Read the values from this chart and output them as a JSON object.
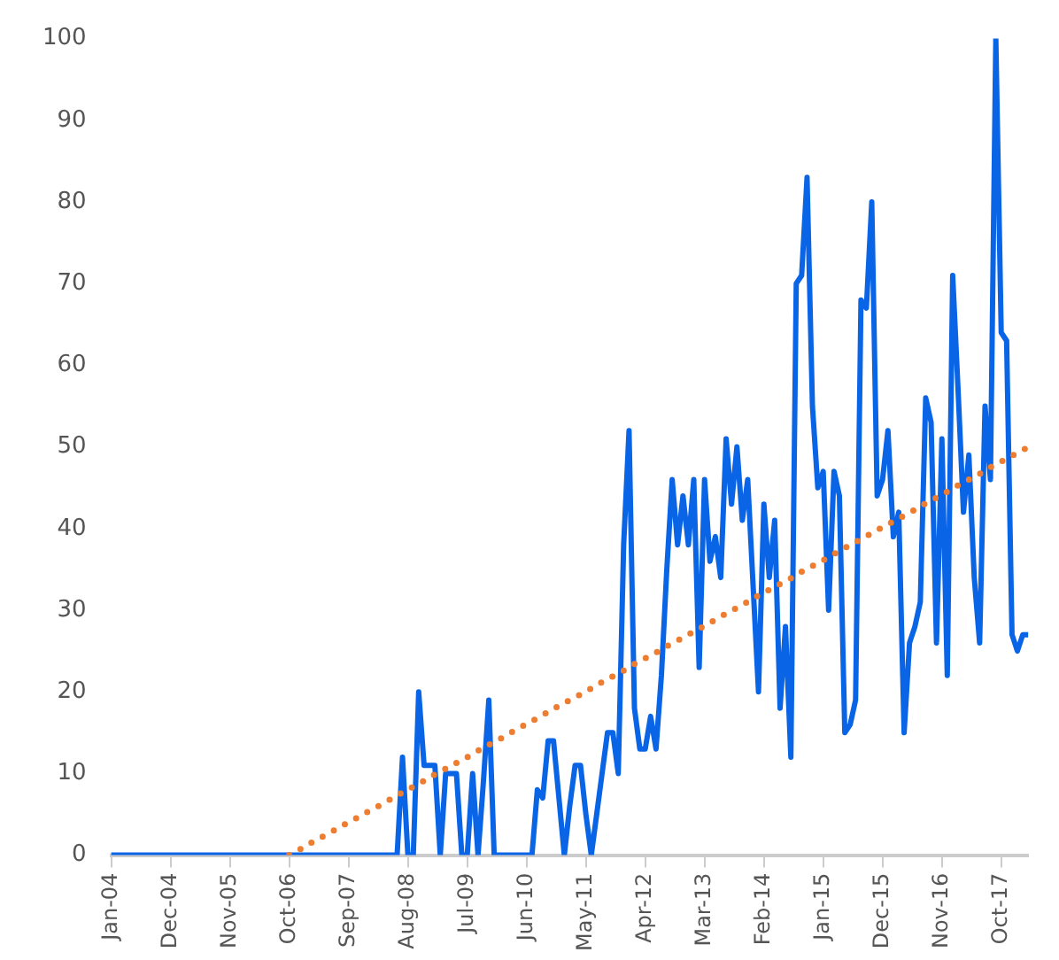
{
  "chart_data": {
    "type": "line",
    "marker": "none",
    "line_style": "solid",
    "legend": false,
    "categories": [
      "Jan-04",
      null,
      null,
      null,
      null,
      null,
      null,
      null,
      null,
      null,
      null,
      "Dec-04",
      null,
      null,
      null,
      null,
      null,
      null,
      null,
      null,
      null,
      null,
      "Nov-05",
      null,
      null,
      null,
      null,
      null,
      null,
      null,
      null,
      null,
      null,
      "Oct-06",
      null,
      null,
      null,
      null,
      null,
      null,
      null,
      null,
      null,
      null,
      "Sep-07",
      null,
      null,
      null,
      null,
      null,
      null,
      null,
      null,
      null,
      null,
      "Aug-08",
      null,
      null,
      null,
      null,
      null,
      null,
      null,
      null,
      null,
      null,
      "Jul-09",
      null,
      null,
      null,
      null,
      null,
      null,
      null,
      null,
      null,
      null,
      "Jun-10",
      null,
      null,
      null,
      null,
      null,
      null,
      null,
      null,
      null,
      null,
      "May-11",
      null,
      null,
      null,
      null,
      null,
      null,
      null,
      null,
      null,
      null,
      "Apr-12",
      null,
      null,
      null,
      null,
      null,
      null,
      null,
      null,
      null,
      null,
      "Mar-13",
      null,
      null,
      null,
      null,
      null,
      null,
      null,
      null,
      null,
      null,
      "Feb-14",
      null,
      null,
      null,
      null,
      null,
      null,
      null,
      null,
      null,
      null,
      "Jan-15",
      null,
      null,
      null,
      null,
      null,
      null,
      null,
      null,
      null,
      null,
      "Dec-15",
      null,
      null,
      null,
      null,
      null,
      null,
      null,
      null,
      null,
      null,
      "Nov-16",
      null,
      null,
      null,
      null,
      null,
      null,
      null,
      null,
      null,
      null,
      "Oct-17",
      null,
      null,
      null,
      null,
      null
    ],
    "ylim": [
      0,
      100
    ],
    "yticks": [
      0,
      10,
      20,
      30,
      40,
      50,
      60,
      70,
      80,
      90,
      100
    ],
    "series": [
      {
        "color": "#0a64e6",
        "values": [
          0,
          0,
          0,
          0,
          0,
          0,
          0,
          0,
          0,
          0,
          0,
          0,
          0,
          0,
          0,
          0,
          0,
          0,
          0,
          0,
          0,
          0,
          0,
          0,
          0,
          0,
          0,
          0,
          0,
          0,
          0,
          0,
          0,
          0,
          0,
          0,
          0,
          0,
          0,
          0,
          0,
          0,
          0,
          0,
          0,
          0,
          0,
          0,
          0,
          0,
          0,
          0,
          0,
          0,
          12,
          0,
          0,
          20,
          11,
          11,
          11,
          0,
          10,
          10,
          10,
          0,
          0,
          10,
          0,
          9,
          19,
          0,
          0,
          0,
          0,
          0,
          0,
          0,
          0,
          8,
          7,
          14,
          14,
          7,
          0,
          6,
          11,
          11,
          5,
          0,
          5,
          10,
          15,
          15,
          10,
          38,
          52,
          18,
          13,
          13,
          17,
          13,
          22,
          35,
          46,
          38,
          44,
          38,
          46,
          23,
          46,
          36,
          39,
          34,
          51,
          43,
          50,
          41,
          46,
          33,
          20,
          43,
          34,
          41,
          18,
          28,
          12,
          70,
          71,
          83,
          55,
          45,
          47,
          30,
          47,
          44,
          15,
          16,
          19,
          68,
          67,
          80,
          44,
          46,
          52,
          39,
          42,
          15,
          26,
          28,
          31,
          56,
          53,
          26,
          51,
          22,
          71,
          57,
          42,
          49,
          34,
          26,
          55,
          46,
          100,
          64,
          63,
          27,
          25,
          27,
          27
        ]
      },
      {
        "type": "line",
        "color": "#ed7d31",
        "line_style": "dotted",
        "values": [
          null,
          null,
          null,
          null,
          null,
          null,
          null,
          null,
          null,
          null,
          null,
          null,
          null,
          null,
          null,
          null,
          null,
          null,
          null,
          null,
          null,
          null,
          null,
          null,
          null,
          null,
          null,
          null,
          null,
          null,
          null,
          null,
          null,
          0,
          0.4,
          0.7,
          1.1,
          1.5,
          1.8,
          2.2,
          2.6,
          2.9,
          3.3,
          3.7,
          4.0,
          4.4,
          4.7,
          5.1,
          5.5,
          5.8,
          6.2,
          6.6,
          6.9,
          7.3,
          7.7,
          8.0,
          8.4,
          8.8,
          9.1,
          9.5,
          9.9,
          10.2,
          10.6,
          11.0,
          11.3,
          11.7,
          12.0,
          12.4,
          12.8,
          13.1,
          13.5,
          13.9,
          14.2,
          14.6,
          15.0,
          15.3,
          15.7,
          16.1,
          16.4,
          16.8,
          17.2,
          17.5,
          17.9,
          18.3,
          18.6,
          19.0,
          19.3,
          19.7,
          20.1,
          20.4,
          20.8,
          21.2,
          21.5,
          21.9,
          22.3,
          22.6,
          23.0,
          23.4,
          23.7,
          24.1,
          24.5,
          24.8,
          25.2,
          25.6,
          25.9,
          26.3,
          26.6,
          27.0,
          27.4,
          27.7,
          28.1,
          28.5,
          28.8,
          29.2,
          29.6,
          29.9,
          30.3,
          30.7,
          31.0,
          31.4,
          31.8,
          32.1,
          32.5,
          32.9,
          33.2,
          33.6,
          33.9,
          34.3,
          34.7,
          35.0,
          35.4,
          35.8,
          36.1,
          36.5,
          36.9,
          37.2,
          37.6,
          38.0,
          38.3,
          38.7,
          39.1,
          39.4,
          39.8,
          40.2,
          40.5,
          40.9,
          41.2,
          41.6,
          42.0,
          42.3,
          42.7,
          43.1,
          43.4,
          43.8,
          44.2,
          44.5,
          44.9,
          45.3,
          45.6,
          46.0,
          46.4,
          46.7,
          47.1,
          47.5,
          47.8,
          48.2,
          48.5,
          48.9,
          49.3,
          49.6,
          50.0
        ]
      }
    ]
  }
}
